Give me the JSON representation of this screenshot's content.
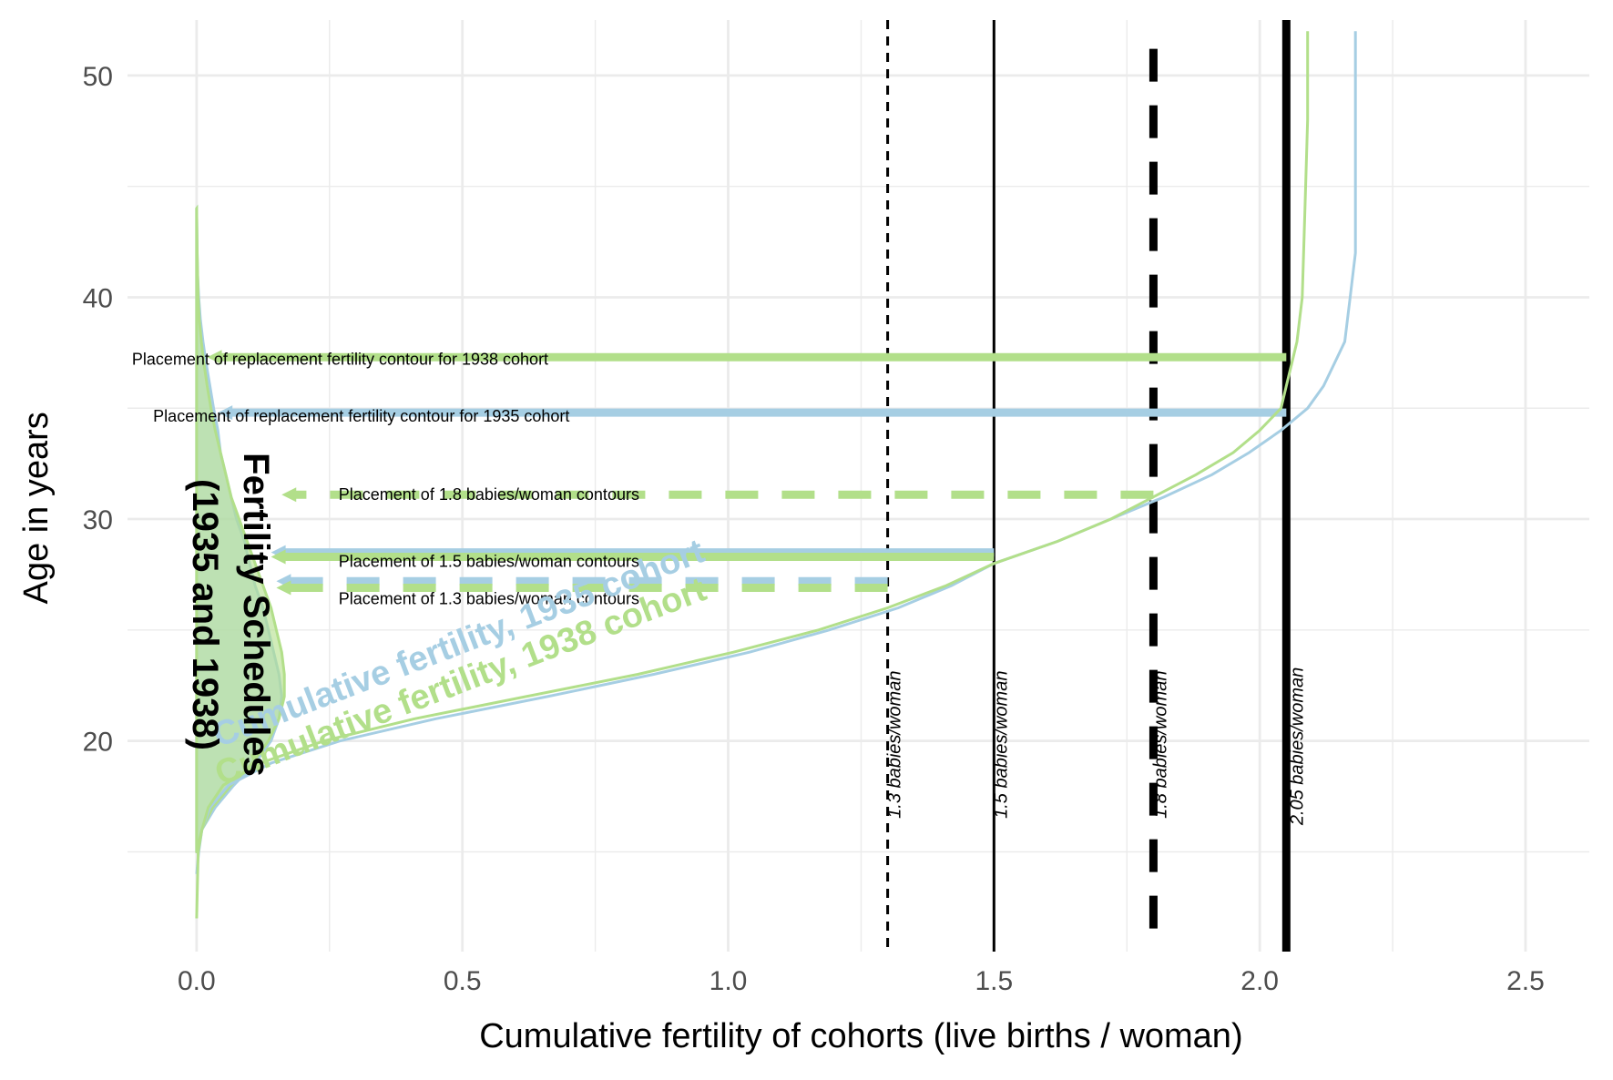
{
  "chart_data": {
    "type": "line",
    "title": "",
    "xlabel": "Cumulative fertility of cohorts (live births / woman)",
    "ylabel": "Age in years",
    "xlim": [
      -0.13,
      2.62
    ],
    "ylim": [
      10.5,
      52.5
    ],
    "x_ticks": [
      0.0,
      0.5,
      1.0,
      1.5,
      2.0,
      2.5
    ],
    "x_tick_labels": [
      "0.0",
      "0.5",
      "1.0",
      "1.5",
      "2.0",
      "2.5"
    ],
    "y_ticks": [
      20,
      30,
      40,
      50
    ],
    "y_tick_labels": [
      "20",
      "30",
      "40",
      "50"
    ],
    "grid": true,
    "colors": {
      "cohort_1935": "#a6cee3",
      "cohort_1938": "#b2df8a",
      "reference": "#000000",
      "grid": "#ebebeb",
      "axis_text": "#4d4d4d"
    },
    "reference_lines": [
      {
        "x": 1.3,
        "label": "1.3 babies/woman",
        "style": "dashed-fine"
      },
      {
        "x": 1.5,
        "label": "1.5 babies/woman",
        "style": "solid"
      },
      {
        "x": 1.8,
        "label": "1.8 babies/woman",
        "style": "dashed-thick"
      },
      {
        "x": 2.05,
        "label": "2.05 babies/woman",
        "style": "solid-thick"
      }
    ],
    "series": [
      {
        "name": "Cumulative fertility, 1935 cohort",
        "color": "#a6cee3",
        "points": [
          [
            0.0,
            14
          ],
          [
            0.004,
            15
          ],
          [
            0.01,
            16
          ],
          [
            0.025,
            17
          ],
          [
            0.06,
            18
          ],
          [
            0.14,
            19
          ],
          [
            0.27,
            20
          ],
          [
            0.45,
            21
          ],
          [
            0.66,
            22
          ],
          [
            0.86,
            23
          ],
          [
            1.04,
            24
          ],
          [
            1.19,
            25
          ],
          [
            1.32,
            26
          ],
          [
            1.42,
            27
          ],
          [
            1.5,
            28
          ],
          [
            1.62,
            29
          ],
          [
            1.72,
            30
          ],
          [
            1.82,
            31
          ],
          [
            1.91,
            32
          ],
          [
            1.98,
            33
          ],
          [
            2.04,
            34
          ],
          [
            2.09,
            35
          ],
          [
            2.12,
            36
          ],
          [
            2.14,
            37
          ],
          [
            2.16,
            38
          ],
          [
            2.17,
            40
          ],
          [
            2.18,
            42
          ],
          [
            2.18,
            45
          ],
          [
            2.18,
            52
          ]
        ]
      },
      {
        "name": "Cumulative fertility, 1938 cohort",
        "color": "#b2df8a",
        "points": [
          [
            0.0,
            12
          ],
          [
            0.003,
            15
          ],
          [
            0.01,
            16
          ],
          [
            0.022,
            17
          ],
          [
            0.05,
            18
          ],
          [
            0.12,
            19
          ],
          [
            0.24,
            20
          ],
          [
            0.41,
            21
          ],
          [
            0.62,
            22
          ],
          [
            0.83,
            23
          ],
          [
            1.01,
            24
          ],
          [
            1.17,
            25
          ],
          [
            1.3,
            26
          ],
          [
            1.41,
            27
          ],
          [
            1.5,
            28
          ],
          [
            1.62,
            29
          ],
          [
            1.72,
            30
          ],
          [
            1.8,
            31
          ],
          [
            1.88,
            32
          ],
          [
            1.95,
            33
          ],
          [
            2.0,
            34
          ],
          [
            2.04,
            35
          ],
          [
            2.05,
            36
          ],
          [
            2.06,
            37
          ],
          [
            2.07,
            38
          ],
          [
            2.08,
            40
          ],
          [
            2.085,
            44
          ],
          [
            2.09,
            48
          ],
          [
            2.09,
            52
          ]
        ]
      }
    ],
    "fertility_schedules": [
      {
        "name": "1935 cohort",
        "color": "#a6cee3",
        "points": [
          [
            0,
            15
          ],
          [
            0.01,
            16
          ],
          [
            0.035,
            17
          ],
          [
            0.07,
            18
          ],
          [
            0.11,
            19
          ],
          [
            0.14,
            20
          ],
          [
            0.155,
            21
          ],
          [
            0.16,
            22
          ],
          [
            0.155,
            23
          ],
          [
            0.145,
            24
          ],
          [
            0.135,
            25
          ],
          [
            0.125,
            26
          ],
          [
            0.11,
            27
          ],
          [
            0.1,
            28
          ],
          [
            0.09,
            29
          ],
          [
            0.075,
            30
          ],
          [
            0.065,
            31
          ],
          [
            0.055,
            32
          ],
          [
            0.045,
            33
          ],
          [
            0.04,
            34
          ],
          [
            0.032,
            35
          ],
          [
            0.025,
            36
          ],
          [
            0.018,
            37
          ],
          [
            0.012,
            38
          ],
          [
            0.007,
            39
          ],
          [
            0.004,
            40
          ],
          [
            0.002,
            41
          ],
          [
            0.001,
            42
          ],
          [
            0,
            44
          ]
        ]
      },
      {
        "name": "1938 cohort",
        "color": "#b2df8a",
        "points": [
          [
            0,
            15
          ],
          [
            0.01,
            16
          ],
          [
            0.03,
            17
          ],
          [
            0.065,
            18
          ],
          [
            0.105,
            19
          ],
          [
            0.135,
            20
          ],
          [
            0.155,
            21
          ],
          [
            0.165,
            22
          ],
          [
            0.165,
            23
          ],
          [
            0.16,
            24
          ],
          [
            0.15,
            25
          ],
          [
            0.14,
            26
          ],
          [
            0.125,
            27
          ],
          [
            0.11,
            28
          ],
          [
            0.095,
            29
          ],
          [
            0.08,
            30
          ],
          [
            0.065,
            31
          ],
          [
            0.055,
            32
          ],
          [
            0.045,
            33
          ],
          [
            0.035,
            34
          ],
          [
            0.027,
            35
          ],
          [
            0.02,
            36
          ],
          [
            0.014,
            37
          ],
          [
            0.009,
            38
          ],
          [
            0.005,
            39
          ],
          [
            0.003,
            40
          ],
          [
            0.002,
            41
          ],
          [
            0.001,
            42
          ],
          [
            0,
            44
          ]
        ]
      }
    ],
    "contours": [
      {
        "label": "Placement of replacement fertility contour for 1938 cohort",
        "y": 37.3,
        "x_from": 2.05,
        "x_to": 0.02,
        "color": "#b2df8a",
        "dashed": false
      },
      {
        "label": "Placement of replacement fertility contour for 1935 cohort",
        "y": 34.8,
        "x_from": 2.05,
        "x_to": 0.04,
        "color": "#a6cee3",
        "dashed": false
      },
      {
        "label": "Placement of 1.8 babies/woman contours",
        "y": 31.1,
        "x_from": 1.8,
        "x_to": 0.16,
        "color": "#b2df8a",
        "dashed": true
      },
      {
        "label": "Placement of 1.5 babies/woman contours",
        "y": 28.5,
        "x_from": 1.5,
        "x_to": 0.14,
        "color": "#a6cee3",
        "dashed": false
      },
      {
        "label": "Placement of 1.5 babies/woman contours",
        "y": 28.3,
        "x_from": 1.5,
        "x_to": 0.14,
        "color": "#b2df8a",
        "dashed": false
      },
      {
        "label": "Placement of 1.3 babies/woman contours",
        "y": 27.2,
        "x_from": 1.3,
        "x_to": 0.15,
        "color": "#a6cee3",
        "dashed": true
      },
      {
        "label": "Placement of 1.3 babies/woman contours",
        "y": 26.9,
        "x_from": 1.3,
        "x_to": 0.15,
        "color": "#b2df8a",
        "dashed": true
      }
    ],
    "annotations": {
      "schedules_title_line1": "Fertility Schedules",
      "schedules_title_line2": "(1935 and 1938)",
      "series_label_1935": "Cumulative fertility, 1935 cohort",
      "series_label_1938": "Cumulative fertility, 1938 cohort"
    }
  }
}
